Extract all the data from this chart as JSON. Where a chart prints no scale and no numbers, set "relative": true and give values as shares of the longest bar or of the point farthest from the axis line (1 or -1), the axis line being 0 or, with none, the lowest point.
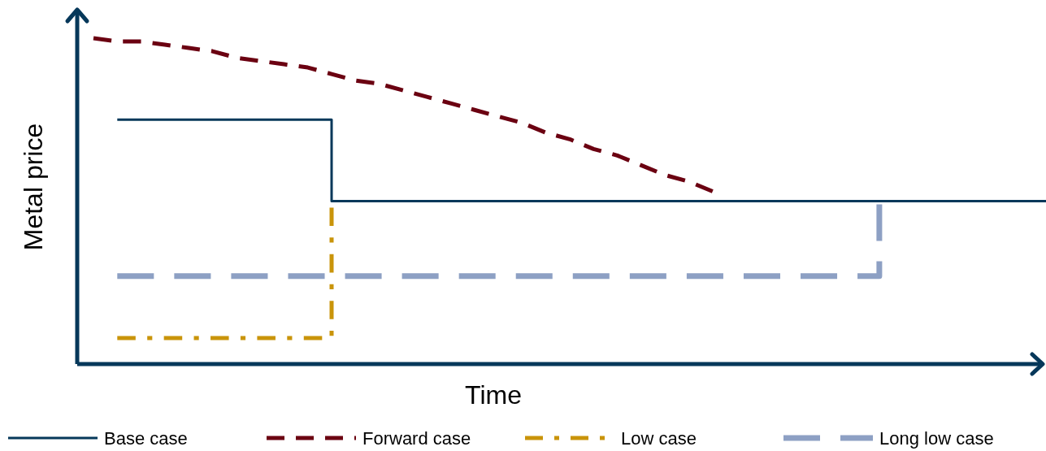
{
  "chart_data": {
    "type": "step",
    "relative": true,
    "xlabel": "Time",
    "ylabel": "Metal price",
    "legend": "bottom",
    "categories": [
      null,
      null,
      null,
      null,
      null,
      null,
      null,
      null,
      null,
      null,
      null,
      null,
      null,
      null,
      null,
      null,
      null,
      null,
      null,
      null,
      null,
      null,
      null,
      null,
      null,
      null,
      null,
      null,
      null,
      null,
      null,
      null,
      null,
      null,
      null,
      null,
      null,
      null,
      null,
      null,
      null
    ],
    "series": [
      {
        "name": "Base case",
        "color": "#06385a",
        "line_style": "solid",
        "values": [
          null,
          0.75,
          0.75,
          0.75,
          0.75,
          0.75,
          0.75,
          0.75,
          0.75,
          0.75,
          0.5,
          0.5,
          0.5,
          0.5,
          0.5,
          0.5,
          0.5,
          0.5,
          0.5,
          0.5,
          0.5,
          0.5,
          0.5,
          0.5,
          0.5,
          0.5,
          0.5,
          0.5,
          0.5,
          0.5,
          0.5,
          0.5,
          0.5,
          0.5,
          0.5,
          0.5,
          0.5,
          0.5,
          0.5,
          0.5,
          0.5
        ]
      },
      {
        "name": "Forward case",
        "type": "line",
        "color": "#6b0011",
        "line_style": "dashed",
        "values": [
          1.0,
          0.99,
          0.99,
          0.98,
          0.97,
          0.96,
          0.94,
          0.93,
          0.92,
          0.91,
          0.89,
          0.87,
          0.86,
          0.84,
          0.82,
          0.8,
          0.78,
          0.76,
          0.74,
          0.71,
          0.69,
          0.66,
          0.64,
          0.61,
          0.58,
          0.56,
          0.53,
          null,
          null,
          null,
          null,
          null,
          null,
          null,
          null,
          null,
          null,
          null,
          null,
          null,
          null
        ]
      },
      {
        "name": "Low case",
        "type": "step",
        "color": "#c9940a",
        "line_style": "dashdot",
        "values": [
          null,
          0.08,
          0.08,
          0.08,
          0.08,
          0.08,
          0.08,
          0.08,
          0.08,
          0.08,
          0.48,
          null,
          null,
          null,
          null,
          null,
          null,
          null,
          null,
          null,
          null,
          null,
          null,
          null,
          null,
          null,
          null,
          null,
          null,
          null,
          null,
          null,
          null,
          null,
          null,
          null,
          null,
          null,
          null,
          null,
          null
        ]
      },
      {
        "name": "Long low case",
        "type": "step",
        "color": "#8da0c4",
        "line_style": "longdash",
        "values": [
          null,
          0.27,
          0.27,
          0.27,
          0.27,
          0.27,
          0.27,
          0.27,
          0.27,
          0.27,
          0.27,
          0.27,
          0.27,
          0.27,
          0.27,
          0.27,
          0.27,
          0.27,
          0.27,
          0.27,
          0.27,
          0.27,
          0.27,
          0.27,
          0.27,
          0.27,
          0.27,
          0.27,
          0.27,
          0.27,
          0.27,
          0.27,
          0.27,
          0.49,
          null,
          null,
          null,
          null,
          null,
          null,
          null
        ]
      }
    ]
  }
}
